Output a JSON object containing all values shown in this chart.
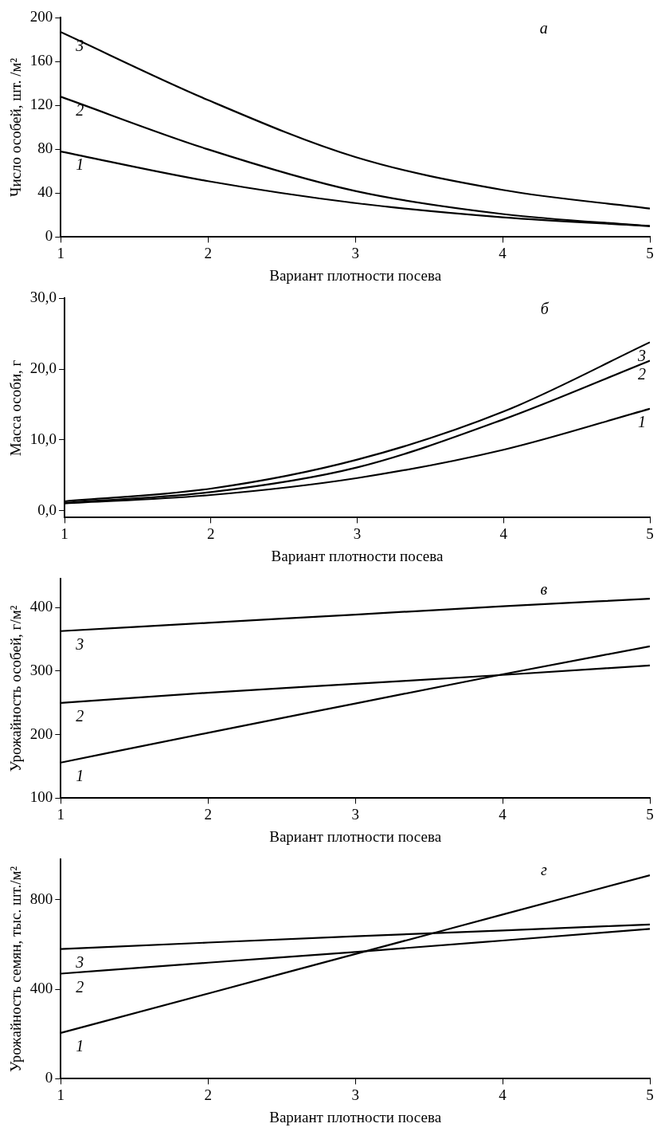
{
  "chart_data": [
    {
      "type": "line",
      "xlabel": "Вариант плотности посева",
      "ylabel": "Число особей, шт. /м²",
      "x": [
        1,
        2,
        3,
        4,
        5
      ],
      "xlim": [
        1,
        5
      ],
      "xticks": [
        1,
        2,
        3,
        4,
        5
      ],
      "ylim": [
        0,
        200
      ],
      "yticks": [
        0,
        40,
        80,
        120,
        160,
        200
      ],
      "legend": false,
      "marker": "none",
      "series": [
        {
          "name": "1",
          "color": "#000000",
          "values": [
            78,
            51,
            31,
            18,
            10
          ]
        },
        {
          "name": "2",
          "color": "#000000",
          "values": [
            128,
            80,
            42,
            21,
            10
          ]
        },
        {
          "name": "3",
          "color": "#000000",
          "values": [
            187,
            125,
            73,
            43,
            26
          ]
        }
      ],
      "annotations": [
        "а"
      ]
    },
    {
      "type": "line",
      "xlabel": "Вариант плотности посева",
      "ylabel": "Масса особи, г",
      "x": [
        1,
        2,
        3,
        4,
        5
      ],
      "xlim": [
        1,
        5
      ],
      "xticks": [
        1,
        2,
        3,
        4,
        5
      ],
      "ylim": [
        -1,
        30
      ],
      "yticks": [
        {
          "value": 0,
          "label": "0,0"
        },
        {
          "value": 10,
          "label": "10,0"
        },
        {
          "value": 20,
          "label": "20,0"
        },
        {
          "value": 30,
          "label": "30,0"
        }
      ],
      "legend": false,
      "marker": "none",
      "series": [
        {
          "name": "1",
          "color": "#000000",
          "values": [
            1.0,
            2.2,
            4.6,
            8.6,
            14.4
          ]
        },
        {
          "name": "2",
          "color": "#000000",
          "values": [
            1.1,
            2.6,
            6.1,
            12.9,
            21.2
          ]
        },
        {
          "name": "3",
          "color": "#000000",
          "values": [
            1.3,
            3.1,
            7.2,
            14.0,
            23.8
          ]
        }
      ],
      "annotations": [
        "б"
      ]
    },
    {
      "type": "line",
      "xlabel": "Вариант плотности посева",
      "ylabel": "Урожайность особей, г/м²",
      "x": [
        1,
        2,
        3,
        4,
        5
      ],
      "xlim": [
        1,
        5
      ],
      "xticks": [
        1,
        2,
        3,
        4,
        5
      ],
      "ylim": [
        100,
        445
      ],
      "yticks": [
        100,
        200,
        300,
        400
      ],
      "legend": false,
      "marker": "none",
      "series": [
        {
          "name": "1",
          "color": "#000000",
          "values": [
            156,
            203,
            249,
            295,
            339
          ]
        },
        {
          "name": "2",
          "color": "#000000",
          "values": [
            250,
            266,
            280,
            294,
            309
          ]
        },
        {
          "name": "3",
          "color": "#000000",
          "values": [
            363,
            376,
            389,
            402,
            414
          ]
        }
      ],
      "annotations": [
        "в"
      ]
    },
    {
      "type": "line",
      "xlabel": "Вариант плотности посева",
      "ylabel": "Урожайность семян, тыс. шт./м²",
      "x": [
        1,
        2,
        3,
        4,
        5
      ],
      "xlim": [
        1,
        5
      ],
      "xticks": [
        1,
        2,
        3,
        4,
        5
      ],
      "ylim": [
        0,
        980
      ],
      "yticks": [
        0,
        400,
        800
      ],
      "legend": false,
      "marker": "none",
      "series": [
        {
          "name": "1",
          "color": "#000000",
          "values": [
            205,
            381,
            558,
            734,
            910
          ]
        },
        {
          "name": "2",
          "color": "#000000",
          "values": [
            470,
            519,
            567,
            618,
            670
          ]
        },
        {
          "name": "3",
          "color": "#000000",
          "values": [
            580,
            609,
            637,
            663,
            690
          ]
        }
      ],
      "annotations": [
        "г"
      ]
    }
  ]
}
